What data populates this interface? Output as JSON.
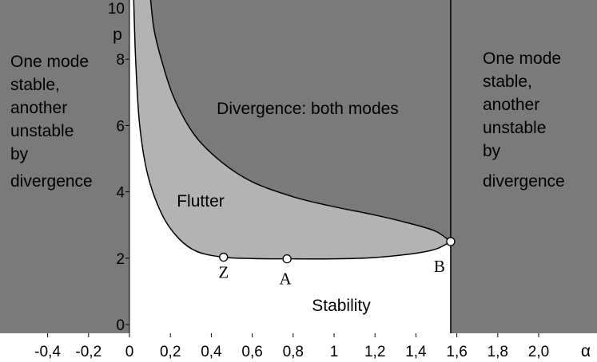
{
  "chart_data": {
    "type": "area",
    "xlabel": "α",
    "ylabel": "p",
    "xlim": [
      -0.62,
      2.2
    ],
    "ylim": [
      -0.3,
      10
    ],
    "x_ticks": [
      {
        "value": -0.4,
        "label": "-0,4"
      },
      {
        "value": -0.2,
        "label": "-0,2"
      },
      {
        "value": 0,
        "label": "0"
      },
      {
        "value": 0.2,
        "label": "0,2"
      },
      {
        "value": 0.4,
        "label": "0,4"
      },
      {
        "value": 0.6,
        "label": "0,6"
      },
      {
        "value": 0.8,
        "label": "0,8"
      },
      {
        "value": 1.0,
        "label": "1"
      },
      {
        "value": 1.2,
        "label": "1,2"
      },
      {
        "value": 1.4,
        "label": "1,4"
      },
      {
        "value": 1.6,
        "label": "1,6"
      },
      {
        "value": 1.8,
        "label": "1,8"
      },
      {
        "value": 2.0,
        "label": "2,0"
      }
    ],
    "y_ticks": [
      {
        "value": 0,
        "label": "0"
      },
      {
        "value": 2,
        "label": "2"
      },
      {
        "value": 4,
        "label": "4"
      },
      {
        "value": 6,
        "label": "6"
      },
      {
        "value": 8,
        "label": "8"
      },
      {
        "value": 10,
        "label": "10"
      }
    ],
    "series": [
      {
        "values": [
          {
            "x": 0.02,
            "y": 10
          },
          {
            "x": 0.03,
            "y": 8.0
          },
          {
            "x": 0.05,
            "y": 6.0
          },
          {
            "x": 0.09,
            "y": 4.5
          },
          {
            "x": 0.16,
            "y": 3.3
          },
          {
            "x": 0.24,
            "y": 2.6
          },
          {
            "x": 0.33,
            "y": 2.2
          },
          {
            "x": 0.46,
            "y": 2.03
          },
          {
            "x": 0.6,
            "y": 1.99
          },
          {
            "x": 0.77,
            "y": 1.98
          },
          {
            "x": 1.0,
            "y": 1.98
          },
          {
            "x": 1.2,
            "y": 2.02
          },
          {
            "x": 1.4,
            "y": 2.15
          },
          {
            "x": 1.5,
            "y": 2.28
          },
          {
            "x": 1.57,
            "y": 2.5
          }
        ]
      },
      {
        "values": [
          {
            "x": 0.1,
            "y": 10
          },
          {
            "x": 0.12,
            "y": 8.9
          },
          {
            "x": 0.16,
            "y": 7.9
          },
          {
            "x": 0.22,
            "y": 6.8
          },
          {
            "x": 0.32,
            "y": 5.7
          },
          {
            "x": 0.45,
            "y": 4.9
          },
          {
            "x": 0.6,
            "y": 4.3
          },
          {
            "x": 0.8,
            "y": 3.85
          },
          {
            "x": 1.0,
            "y": 3.55
          },
          {
            "x": 1.2,
            "y": 3.3
          },
          {
            "x": 1.4,
            "y": 3.0
          },
          {
            "x": 1.5,
            "y": 2.8
          },
          {
            "x": 1.57,
            "y": 2.5
          }
        ]
      }
    ],
    "boundary_alpha": 1.57,
    "points": [
      {
        "label": "Z",
        "x": 0.46,
        "y": 2.03
      },
      {
        "label": "A",
        "x": 0.77,
        "y": 1.98
      },
      {
        "label": "B",
        "x": 1.57,
        "y": 2.5
      }
    ],
    "region_labels": {
      "left": [
        "One mode",
        "stable,",
        "another",
        "unstable",
        "by",
        "divergence"
      ],
      "right": [
        "One mode",
        "stable,",
        "another",
        "unstable",
        "by",
        "divergence"
      ],
      "divergence": "Divergence: both modes",
      "flutter": "Flutter",
      "stability": "Stability"
    },
    "colors": {
      "dark_region": "#7a7a7a",
      "flutter_region": "#b3b3b3",
      "stable_region": "#ffffff",
      "line": "#000000"
    }
  }
}
